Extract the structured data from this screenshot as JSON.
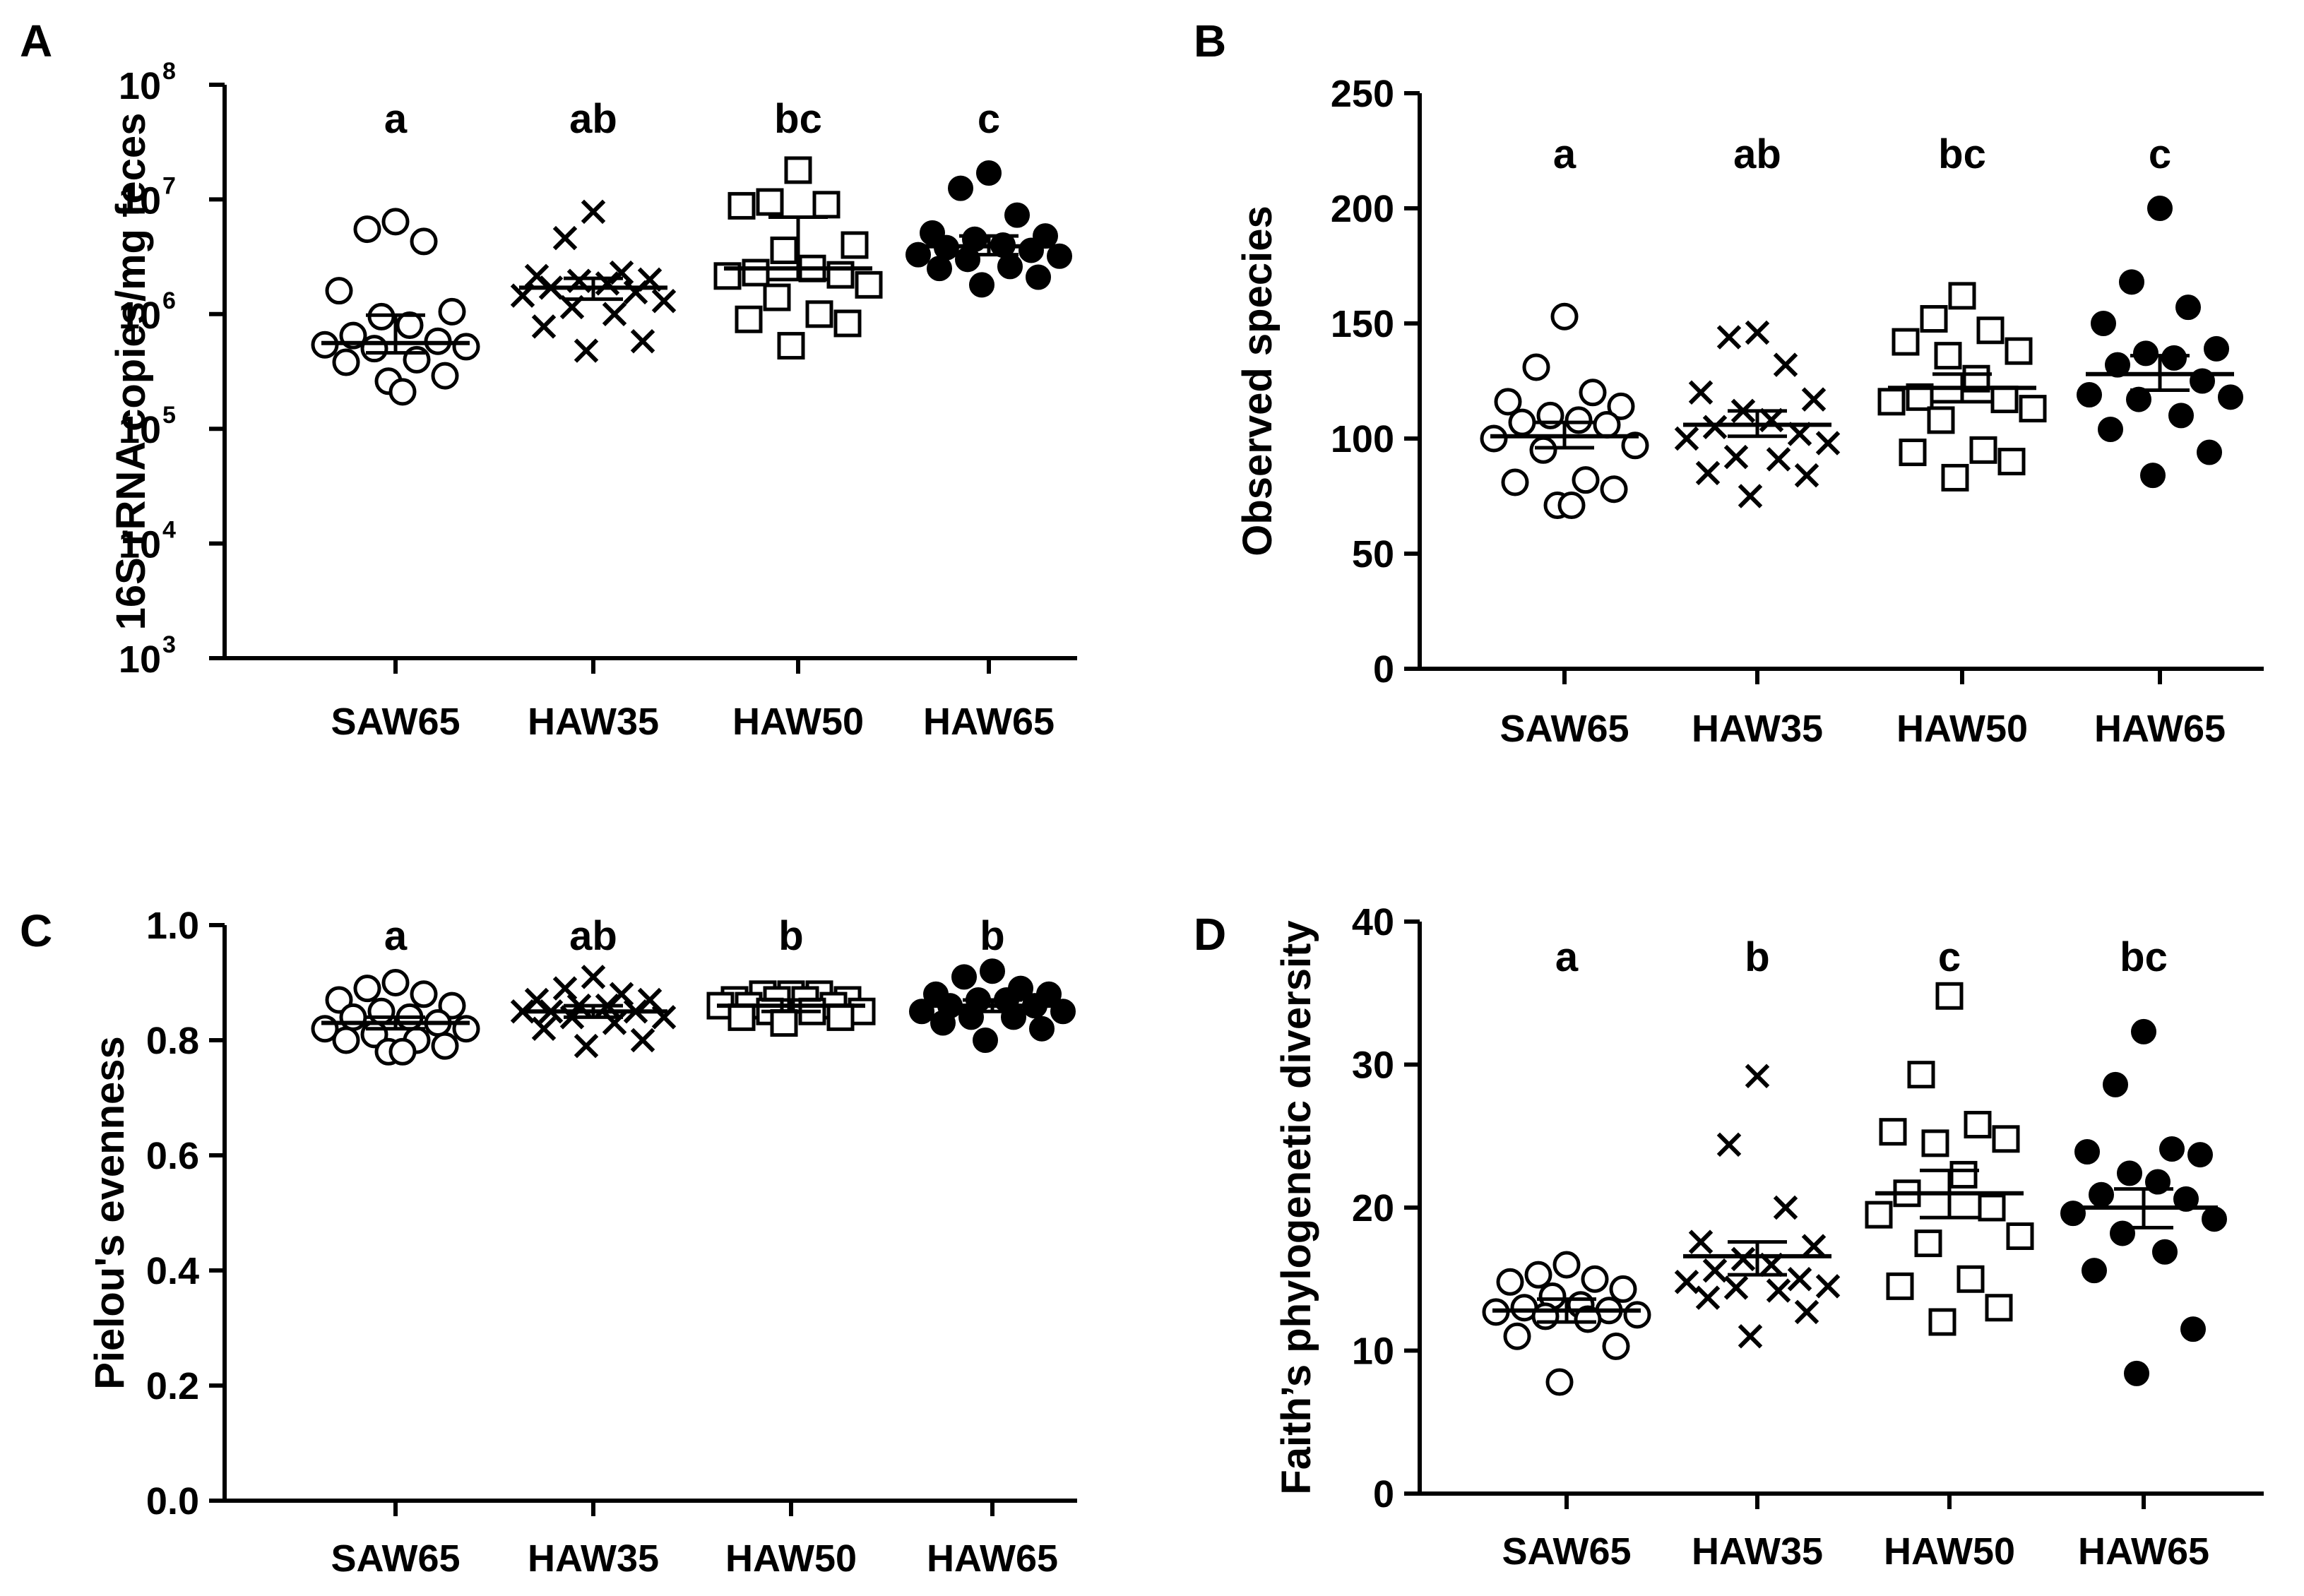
{
  "chart_data": [
    {
      "panel": "A",
      "type": "scatter",
      "ylabel": "16S rRNA copies/mg feces",
      "yscale": "log",
      "ylim": [
        1000,
        100000000
      ],
      "yticks": [
        {
          "value": 1000,
          "base": "10",
          "exp": "3"
        },
        {
          "value": 10000,
          "base": "10",
          "exp": "4"
        },
        {
          "value": 100000,
          "base": "10",
          "exp": "5"
        },
        {
          "value": 1000000,
          "base": "10",
          "exp": "6"
        },
        {
          "value": 10000000,
          "base": "10",
          "exp": "7"
        },
        {
          "value": 100000000,
          "base": "10",
          "exp": "8"
        }
      ],
      "categories": [
        "SAW65",
        "HAW35",
        "HAW50",
        "HAW65"
      ],
      "significance": [
        "a",
        "ab",
        "bc",
        "c"
      ],
      "series": [
        {
          "name": "SAW65",
          "marker": "open-circle",
          "mean": 560000,
          "sem_low": 460000,
          "sem_high": 980000,
          "values": [
            6400000,
            5500000,
            4300000,
            1600000,
            1050000,
            950000,
            800000,
            650000,
            580000,
            540000,
            520000,
            500000,
            400000,
            380000,
            290000,
            260000,
            210000
          ]
        },
        {
          "name": "HAW35",
          "marker": "x",
          "mean": 1700000,
          "sem_low": 1350000,
          "sem_high": 2050000,
          "values": [
            7800000,
            4600000,
            2300000,
            2150000,
            2000000,
            1950000,
            1850000,
            1700000,
            1550000,
            1450000,
            1300000,
            1150000,
            1000000,
            780000,
            580000,
            480000
          ]
        },
        {
          "name": "HAW50",
          "marker": "open-square",
          "mean": 2500000,
          "sem_low": 2000000,
          "sem_high": 7000000,
          "values": [
            18000000,
            9500000,
            9000000,
            8800000,
            4000000,
            3600000,
            2500000,
            2300000,
            2200000,
            2150000,
            1800000,
            1400000,
            1000000,
            900000,
            830000,
            530000
          ]
        },
        {
          "name": "HAW65",
          "marker": "filled-circle",
          "mean": 3900000,
          "sem_low": 3300000,
          "sem_high": 4800000,
          "values": [
            17000000,
            12500000,
            7300000,
            5100000,
            4800000,
            4500000,
            4000000,
            3800000,
            3600000,
            3300000,
            3200000,
            3000000,
            2600000,
            2500000,
            2100000,
            1800000
          ]
        }
      ]
    },
    {
      "panel": "B",
      "type": "scatter",
      "ylabel": "Observed species",
      "yscale": "linear",
      "ylim": [
        0,
        250
      ],
      "yticks": [
        0,
        50,
        100,
        150,
        200,
        250
      ],
      "categories": [
        "SAW65",
        "HAW35",
        "HAW50",
        "HAW65"
      ],
      "significance": [
        "a",
        "ab",
        "bc",
        "c"
      ],
      "series": [
        {
          "name": "SAW65",
          "marker": "open-circle",
          "mean": 101,
          "sem_low": 96,
          "sem_high": 107,
          "values": [
            153,
            131,
            120,
            116,
            114,
            110,
            108,
            107,
            106,
            100,
            97,
            95,
            82,
            81,
            78,
            71,
            71
          ]
        },
        {
          "name": "HAW35",
          "marker": "x",
          "mean": 106,
          "sem_low": 101,
          "sem_high": 112,
          "values": [
            146,
            144,
            132,
            120,
            117,
            112,
            108,
            105,
            102,
            100,
            98,
            92,
            91,
            85,
            84,
            75
          ]
        },
        {
          "name": "HAW50",
          "marker": "open-square",
          "mean": 122,
          "sem_low": 116,
          "sem_high": 128,
          "values": [
            162,
            152,
            147,
            142,
            138,
            136,
            126,
            118,
            117,
            116,
            113,
            108,
            95,
            94,
            90,
            83
          ]
        },
        {
          "name": "HAW65",
          "marker": "filled-circle",
          "mean": 128,
          "sem_low": 121,
          "sem_high": 136,
          "values": [
            200,
            168,
            157,
            150,
            139,
            137,
            135,
            132,
            125,
            119,
            118,
            117,
            110,
            104,
            94,
            84
          ]
        }
      ]
    },
    {
      "panel": "C",
      "type": "scatter",
      "ylabel": "Pielou's evenness",
      "yscale": "linear",
      "ylim": [
        0,
        1.0
      ],
      "yticks": [
        "0.0",
        "0.2",
        "0.4",
        "0.6",
        "0.8",
        "1.0"
      ],
      "categories": [
        "SAW65",
        "HAW35",
        "HAW50",
        "HAW65"
      ],
      "significance": [
        "a",
        "ab",
        "b",
        "b"
      ],
      "series": [
        {
          "name": "SAW65",
          "marker": "open-circle",
          "mean": 0.83,
          "sem_low": 0.82,
          "sem_high": 0.84,
          "values": [
            0.9,
            0.89,
            0.88,
            0.87,
            0.86,
            0.85,
            0.84,
            0.84,
            0.83,
            0.82,
            0.82,
            0.81,
            0.8,
            0.8,
            0.79,
            0.78,
            0.78
          ]
        },
        {
          "name": "HAW35",
          "marker": "x",
          "mean": 0.85,
          "sem_low": 0.84,
          "sem_high": 0.86,
          "values": [
            0.91,
            0.89,
            0.88,
            0.87,
            0.87,
            0.86,
            0.86,
            0.85,
            0.85,
            0.85,
            0.84,
            0.84,
            0.83,
            0.82,
            0.8,
            0.79
          ]
        },
        {
          "name": "HAW50",
          "marker": "open-square",
          "mean": 0.86,
          "sem_low": 0.85,
          "sem_high": 0.87,
          "values": [
            0.88,
            0.88,
            0.88,
            0.87,
            0.87,
            0.87,
            0.87,
            0.86,
            0.86,
            0.86,
            0.85,
            0.85,
            0.85,
            0.84,
            0.84,
            0.83
          ]
        },
        {
          "name": "HAW65",
          "marker": "filled-circle",
          "mean": 0.86,
          "sem_low": 0.85,
          "sem_high": 0.87,
          "values": [
            0.92,
            0.91,
            0.89,
            0.88,
            0.88,
            0.87,
            0.87,
            0.86,
            0.86,
            0.85,
            0.85,
            0.84,
            0.84,
            0.83,
            0.82,
            0.8
          ]
        }
      ]
    },
    {
      "panel": "D",
      "type": "scatter",
      "ylabel": "Faith’s phylogenetic diversity",
      "yscale": "linear",
      "ylim": [
        0,
        40
      ],
      "yticks": [
        0,
        10,
        20,
        30,
        40
      ],
      "categories": [
        "SAW65",
        "HAW35",
        "HAW50",
        "HAW65"
      ],
      "significance": [
        "a",
        "b",
        "c",
        "bc"
      ],
      "series": [
        {
          "name": "SAW65",
          "marker": "open-circle",
          "mean": 12.8,
          "sem_low": 12.0,
          "sem_high": 13.6,
          "values": [
            16.0,
            15.3,
            15.0,
            14.8,
            14.3,
            13.8,
            13.2,
            13.0,
            12.8,
            12.7,
            12.5,
            12.4,
            12.2,
            11.0,
            10.3,
            7.8
          ]
        },
        {
          "name": "HAW35",
          "marker": "x",
          "mean": 16.6,
          "sem_low": 15.3,
          "sem_high": 17.6,
          "values": [
            29.2,
            24.4,
            20.0,
            17.6,
            17.3,
            16.4,
            16.0,
            15.6,
            15.0,
            14.8,
            14.5,
            14.4,
            14.2,
            13.7,
            12.7,
            11.0
          ]
        },
        {
          "name": "HAW50",
          "marker": "open-square",
          "mean": 21.0,
          "sem_low": 19.3,
          "sem_high": 22.6,
          "values": [
            34.8,
            29.3,
            25.8,
            25.3,
            24.8,
            24.5,
            22.3,
            21.0,
            20.0,
            19.5,
            18.0,
            17.5,
            15.0,
            14.5,
            13.0,
            12.0
          ]
        },
        {
          "name": "HAW65",
          "marker": "filled-circle",
          "mean": 20.0,
          "sem_low": 18.6,
          "sem_high": 21.3,
          "values": [
            32.3,
            28.6,
            24.1,
            23.9,
            23.7,
            22.4,
            21.8,
            20.9,
            20.6,
            19.6,
            19.2,
            18.2,
            16.9,
            15.6,
            11.5,
            8.4
          ]
        }
      ]
    }
  ]
}
